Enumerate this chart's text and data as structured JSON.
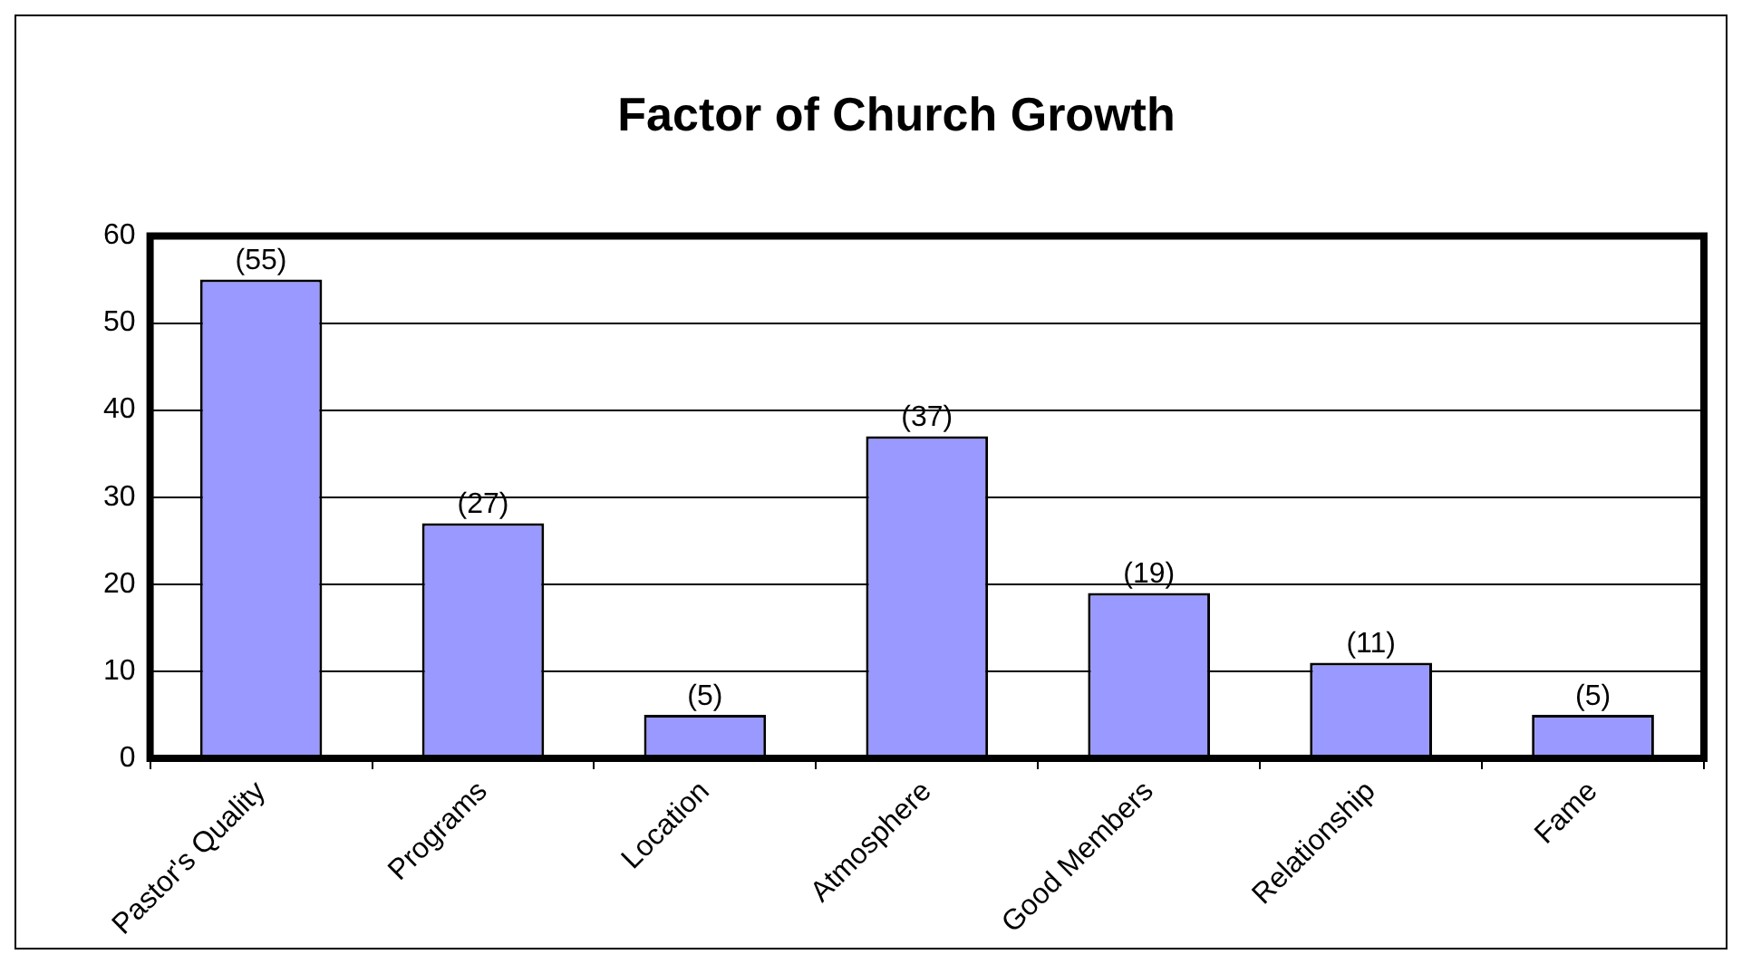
{
  "chart_data": {
    "type": "bar",
    "title": "Factor of Church Growth",
    "categories": [
      "Pastor's Quality",
      "Programs",
      "Location",
      "Atmosphere",
      "Good Members",
      "Relationship",
      "Fame"
    ],
    "values": [
      55,
      27,
      5,
      37,
      19,
      11,
      5
    ],
    "value_labels": [
      "(55)",
      "(27)",
      "(5)",
      "(37)",
      "(19)",
      "(11)",
      "(5)"
    ],
    "color": "#9999ff",
    "ylim": [
      0,
      60
    ],
    "yticks": [
      0,
      10,
      20,
      30,
      40,
      50,
      60
    ],
    "grid": "y"
  }
}
